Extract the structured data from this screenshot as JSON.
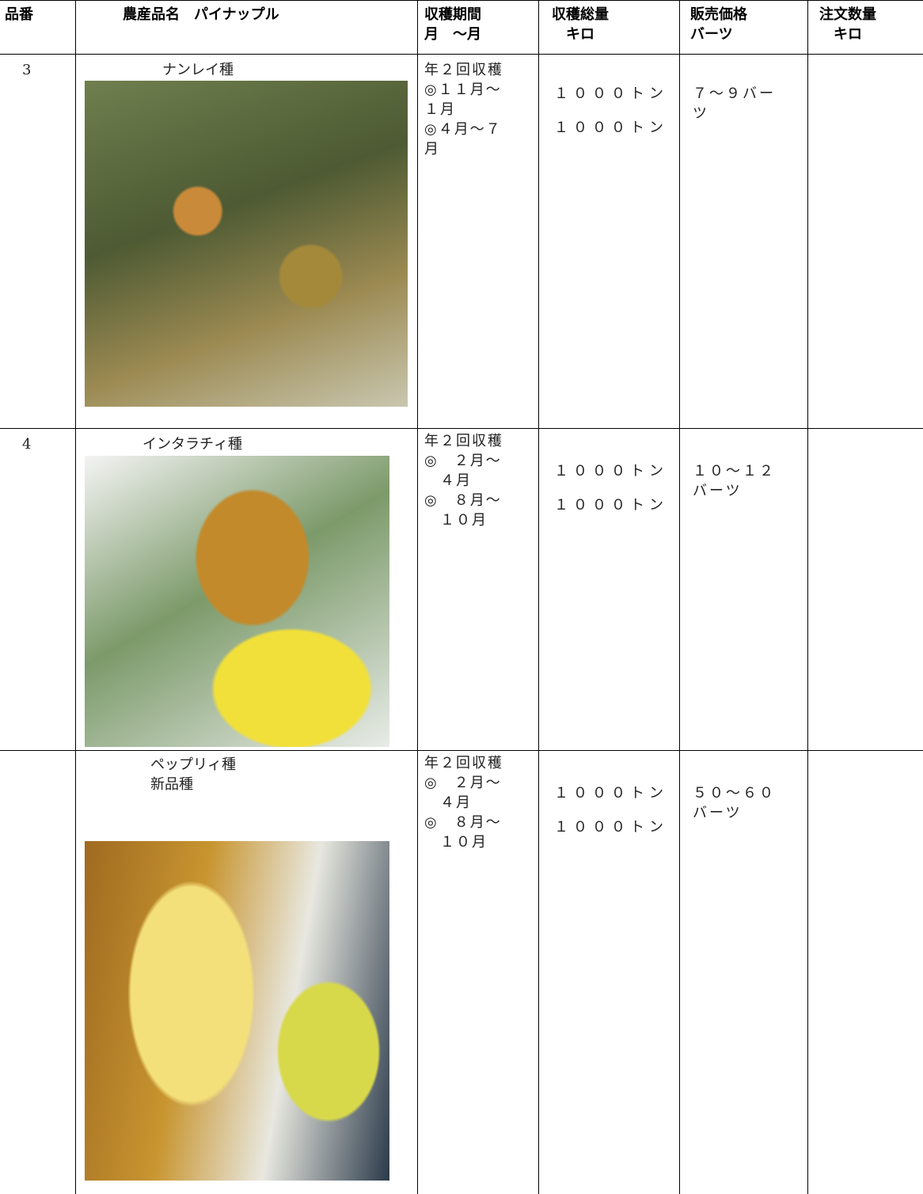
{
  "table": {
    "header": [
      [
        "品番"
      ],
      [
        "農産品名　パイナップル"
      ],
      [
        "収穫期間",
        "月　～月"
      ],
      [
        "収穫総量",
        "　キロ"
      ],
      [
        "販売価格",
        "バーツ"
      ],
      [
        "注文数量",
        "　キロ"
      ]
    ],
    "rows": [
      {
        "number": "3",
        "name": [
          "ナンレイ種"
        ],
        "period": [
          "年２回収穫",
          "◎１１月～",
          "１月",
          "◎４月～７",
          "月"
        ],
        "volume": [
          "１０００トン",
          "１０００トン"
        ],
        "price": [
          "７～９バー",
          "ツ"
        ]
      },
      {
        "number": "4",
        "name": [
          "インタラチィ種"
        ],
        "period": [
          "年２回収穫",
          "◎　２月～",
          "　４月",
          "◎　８月～",
          "　１０月"
        ],
        "volume": [
          "１０００トン",
          "１０００トン"
        ],
        "price": [
          "１０～１２",
          "バーツ"
        ]
      },
      {
        "name": [
          "ペップリィ種",
          "新品種"
        ],
        "period": [
          "年２回収穫",
          "◎　２月～",
          "　４月",
          "◎　８月～",
          "　１０月"
        ],
        "volume": [
          "１０００トン",
          "１０００トン"
        ],
        "price": [
          "５０～６０",
          "バーツ"
        ]
      }
    ]
  }
}
